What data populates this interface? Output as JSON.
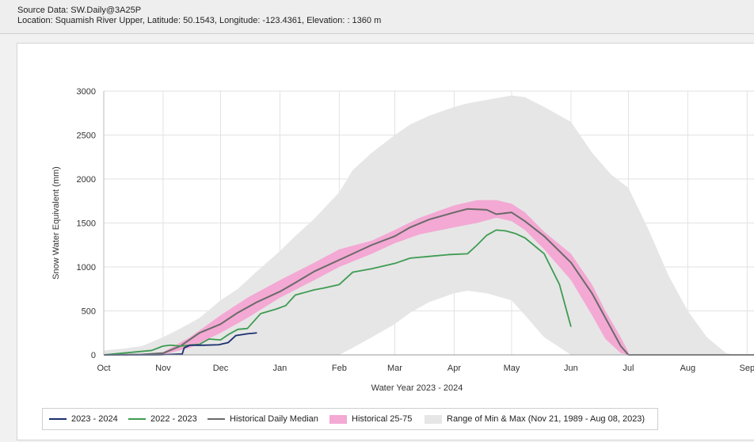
{
  "header": {
    "source_line": "Source Data: SW.Daily@3A25P",
    "location_line": "Location: Squamish River Upper, Latitude: 50.1543, Longitude: -123.4361, Elevation: : 1360 m"
  },
  "colors": {
    "series_2023_2024": "#1b2f6e",
    "series_2022_2023": "#3e9b52",
    "median": "#6a6a6a",
    "band_25_75": "#f3a9d3",
    "band_min_max": "#e6e6e6",
    "grid": "#e2e2e2"
  },
  "legend": {
    "items": [
      {
        "label": "2023 - 2024",
        "kind": "line",
        "color": "#1b2f6e"
      },
      {
        "label": "2022 - 2023",
        "kind": "line",
        "color": "#3e9b52"
      },
      {
        "label": "Historical Daily Median",
        "kind": "line",
        "color": "#6a6a6a"
      },
      {
        "label": "Historical 25-75",
        "kind": "box",
        "color": "#f3a9d3"
      },
      {
        "label": "Range of Min & Max (Nov 21, 1989 - Aug 08, 2023)",
        "kind": "box",
        "color": "#e6e6e6"
      }
    ]
  },
  "chart_data": {
    "type": "line",
    "title": "",
    "xlabel": "Water Year 2023 - 2024",
    "ylabel": "Snow Water Equivalent (mm)",
    "x_unit": "days since Oct 1",
    "xlim": [
      0,
      340
    ],
    "ylim": [
      0,
      3000
    ],
    "yticks": [
      0,
      500,
      1000,
      1500,
      2000,
      2500,
      3000
    ],
    "xticks": [
      {
        "label": "Oct",
        "day": 0
      },
      {
        "label": "Nov",
        "day": 31
      },
      {
        "label": "Dec",
        "day": 61
      },
      {
        "label": "Jan",
        "day": 92
      },
      {
        "label": "Feb",
        "day": 123
      },
      {
        "label": "Mar",
        "day": 152
      },
      {
        "label": "Apr",
        "day": 183
      },
      {
        "label": "May",
        "day": 213
      },
      {
        "label": "Jun",
        "day": 244
      },
      {
        "label": "Jul",
        "day": 274
      },
      {
        "label": "Aug",
        "day": 305
      },
      {
        "label": "Sep",
        "day": 336
      }
    ],
    "min_max_band": {
      "name": "Range of Min & Max (Nov 21, 1989 - Aug 08, 2023)",
      "x": [
        0,
        10,
        20,
        31,
        40,
        50,
        61,
        70,
        80,
        92,
        100,
        110,
        123,
        130,
        140,
        152,
        160,
        170,
        183,
        190,
        200,
        213,
        220,
        230,
        244,
        255,
        265,
        274,
        285,
        295,
        305,
        315,
        325,
        330
      ],
      "upper": [
        50,
        70,
        100,
        200,
        300,
        420,
        620,
        750,
        950,
        1180,
        1350,
        1550,
        1850,
        2100,
        2300,
        2500,
        2620,
        2720,
        2820,
        2860,
        2900,
        2950,
        2930,
        2820,
        2650,
        2300,
        2050,
        1900,
        1400,
        900,
        500,
        200,
        20,
        0
      ],
      "lower": [
        0,
        0,
        0,
        0,
        0,
        0,
        0,
        0,
        0,
        0,
        0,
        0,
        0,
        80,
        200,
        350,
        480,
        600,
        700,
        730,
        700,
        620,
        450,
        200,
        0,
        0,
        0,
        0,
        0,
        0,
        0,
        0,
        0,
        0
      ]
    },
    "band_25_75": {
      "name": "Historical 25-75",
      "x": [
        0,
        20,
        31,
        45,
        61,
        75,
        92,
        110,
        123,
        140,
        152,
        165,
        183,
        195,
        205,
        213,
        220,
        230,
        244,
        255,
        262,
        270,
        274
      ],
      "upper": [
        0,
        5,
        30,
        200,
        450,
        650,
        850,
        1050,
        1200,
        1300,
        1420,
        1560,
        1700,
        1760,
        1760,
        1720,
        1620,
        1400,
        1150,
        800,
        500,
        200,
        30
      ],
      "lower": [
        0,
        0,
        5,
        80,
        250,
        420,
        650,
        850,
        1000,
        1150,
        1270,
        1370,
        1450,
        1500,
        1560,
        1520,
        1420,
        1200,
        850,
        450,
        180,
        20,
        0
      ]
    },
    "series": [
      {
        "name": "Historical Daily Median",
        "x": [
          0,
          20,
          31,
          40,
          50,
          61,
          70,
          80,
          92,
          100,
          110,
          123,
          130,
          140,
          152,
          160,
          170,
          183,
          190,
          200,
          205,
          213,
          220,
          230,
          244,
          255,
          265,
          270,
          274,
          340
        ],
        "values": [
          0,
          5,
          20,
          100,
          250,
          350,
          480,
          600,
          720,
          820,
          950,
          1080,
          1150,
          1250,
          1350,
          1450,
          1540,
          1620,
          1660,
          1650,
          1600,
          1620,
          1520,
          1350,
          1050,
          700,
          300,
          100,
          0,
          0
        ]
      },
      {
        "name": "2022 - 2023",
        "x": [
          0,
          25,
          31,
          35,
          40,
          50,
          55,
          61,
          65,
          70,
          75,
          82,
          90,
          95,
          100,
          110,
          115,
          123,
          130,
          140,
          152,
          160,
          170,
          180,
          190,
          195,
          200,
          205,
          210,
          215,
          220,
          230,
          238,
          244
        ],
        "values": [
          0,
          50,
          100,
          110,
          100,
          120,
          180,
          170,
          230,
          290,
          300,
          470,
          520,
          560,
          680,
          740,
          760,
          800,
          940,
          980,
          1040,
          1100,
          1120,
          1140,
          1150,
          1250,
          1360,
          1420,
          1410,
          1380,
          1330,
          1150,
          800,
          320
        ]
      },
      {
        "name": "2023 - 2024",
        "x": [
          0,
          14,
          29,
          41,
          42,
          45,
          52,
          60,
          65,
          69,
          75,
          80
        ],
        "values": [
          0,
          0,
          0,
          10,
          80,
          110,
          110,
          115,
          140,
          220,
          240,
          250
        ]
      }
    ]
  }
}
